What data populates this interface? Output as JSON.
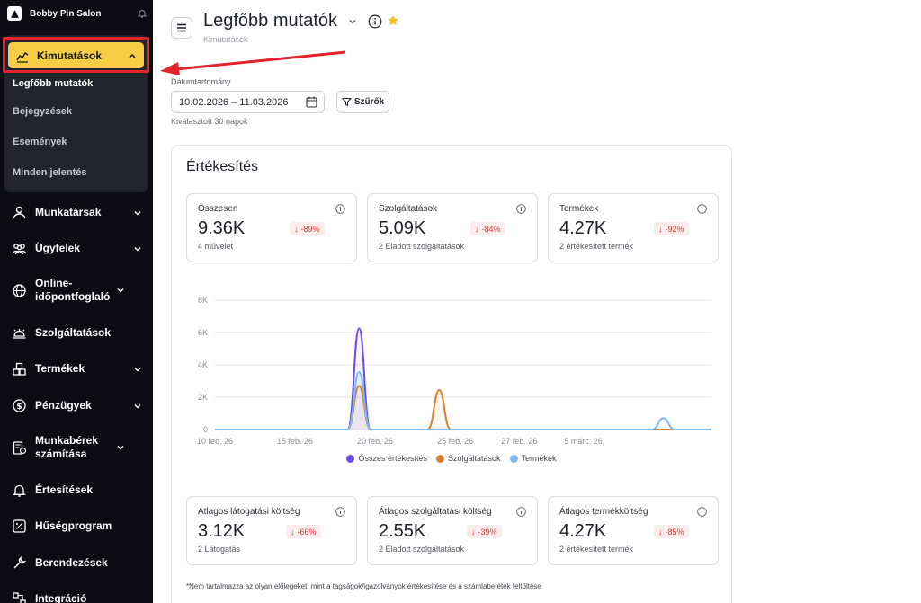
{
  "sidebar": {
    "brand": "Bobby Pin Salon",
    "active": {
      "label": "Kimutatások",
      "icon": "chart-icon"
    },
    "subitems": [
      "Legfőbb mutatók",
      "Bejegyzések",
      "Események",
      "Minden jelentés"
    ],
    "items": [
      {
        "label": "Munkatársak",
        "icon": "user-icon",
        "chevron": true
      },
      {
        "label": "Ügyfelek",
        "icon": "users-icon",
        "chevron": true
      },
      {
        "label": "Online-időpontfoglaló",
        "icon": "globe-icon",
        "chevron": true
      },
      {
        "label": "Szolgáltatások",
        "icon": "service-bell-icon",
        "chevron": false
      },
      {
        "label": "Termékek",
        "icon": "box-icon",
        "chevron": true
      },
      {
        "label": "Pénzügyek",
        "icon": "dollar-icon",
        "chevron": true
      },
      {
        "label": "Munkabérek számítása",
        "icon": "payroll-icon",
        "chevron": true
      },
      {
        "label": "Értesítések",
        "icon": "bell-icon",
        "chevron": false
      },
      {
        "label": "Hűségprogram",
        "icon": "percent-icon",
        "chevron": false
      },
      {
        "label": "Berendezések",
        "icon": "wrench-icon",
        "chevron": false
      },
      {
        "label": "Integráció",
        "icon": "integration-icon",
        "chevron": false
      }
    ]
  },
  "header": {
    "title": "Legfőbb mutatók",
    "subtitle": "Kimutatások"
  },
  "filters": {
    "date_label": "Dátumtartomány",
    "date_value": "10.02.2026 – 11.03.2026",
    "filter_button": "Szűrők",
    "hint": "Kiválasztott 30 napok"
  },
  "sales": {
    "title": "Értékesítés",
    "stats_top": [
      {
        "label": "Összesen",
        "value": "9.36K",
        "delta": "-89%",
        "desc": "4 művelet"
      },
      {
        "label": "Szolgáltatások",
        "value": "5.09K",
        "delta": "-84%",
        "desc": "2 Eladott szolgáltatások"
      },
      {
        "label": "Termékek",
        "value": "4.27K",
        "delta": "-92%",
        "desc": "2 értékesített termék"
      }
    ],
    "stats_bottom": [
      {
        "label": "Átlagos látogatási költség",
        "value": "3.12K",
        "delta": "-66%",
        "desc": "2 Látogatás"
      },
      {
        "label": "Átlagos szolgáltatási költség",
        "value": "2.55K",
        "delta": "-39%",
        "desc": "2 Eladott szolgáltatások"
      },
      {
        "label": "Átlagos termékköltség",
        "value": "4.27K",
        "delta": "-85%",
        "desc": "2 értékesített termék"
      }
    ],
    "footnote": "*Nem tartalmazza az olyan előlegeket, mint a tagságok/igazolványok értékesítése és a számlabetétek feltöltése"
  },
  "chart_data": {
    "type": "area",
    "x_ticks": [
      "10 feb. 26",
      "15 feb. 26",
      "20 feb. 26",
      "25 feb. 26",
      "27 feb. 26",
      "5 márc. 26"
    ],
    "y_ticks": [
      "8K",
      "6K",
      "4K",
      "2K",
      "0"
    ],
    "ylim": [
      0,
      8000
    ],
    "grid": true,
    "legend_position": "bottom",
    "series": [
      {
        "name": "Összes értékesítés",
        "color": "#6b4ce6",
        "points": [
          [
            "2026-02-19",
            6250
          ],
          [
            "2026-03-10",
            0
          ]
        ]
      },
      {
        "name": "Szolgáltatások",
        "color": "#d9812a",
        "points": [
          [
            "2026-02-19",
            2700
          ],
          [
            "2026-02-24",
            2450
          ]
        ]
      },
      {
        "name": "Termékek",
        "color": "#7cbcf0",
        "points": [
          [
            "2026-02-19",
            3550
          ],
          [
            "2026-03-10",
            700
          ]
        ]
      }
    ]
  }
}
